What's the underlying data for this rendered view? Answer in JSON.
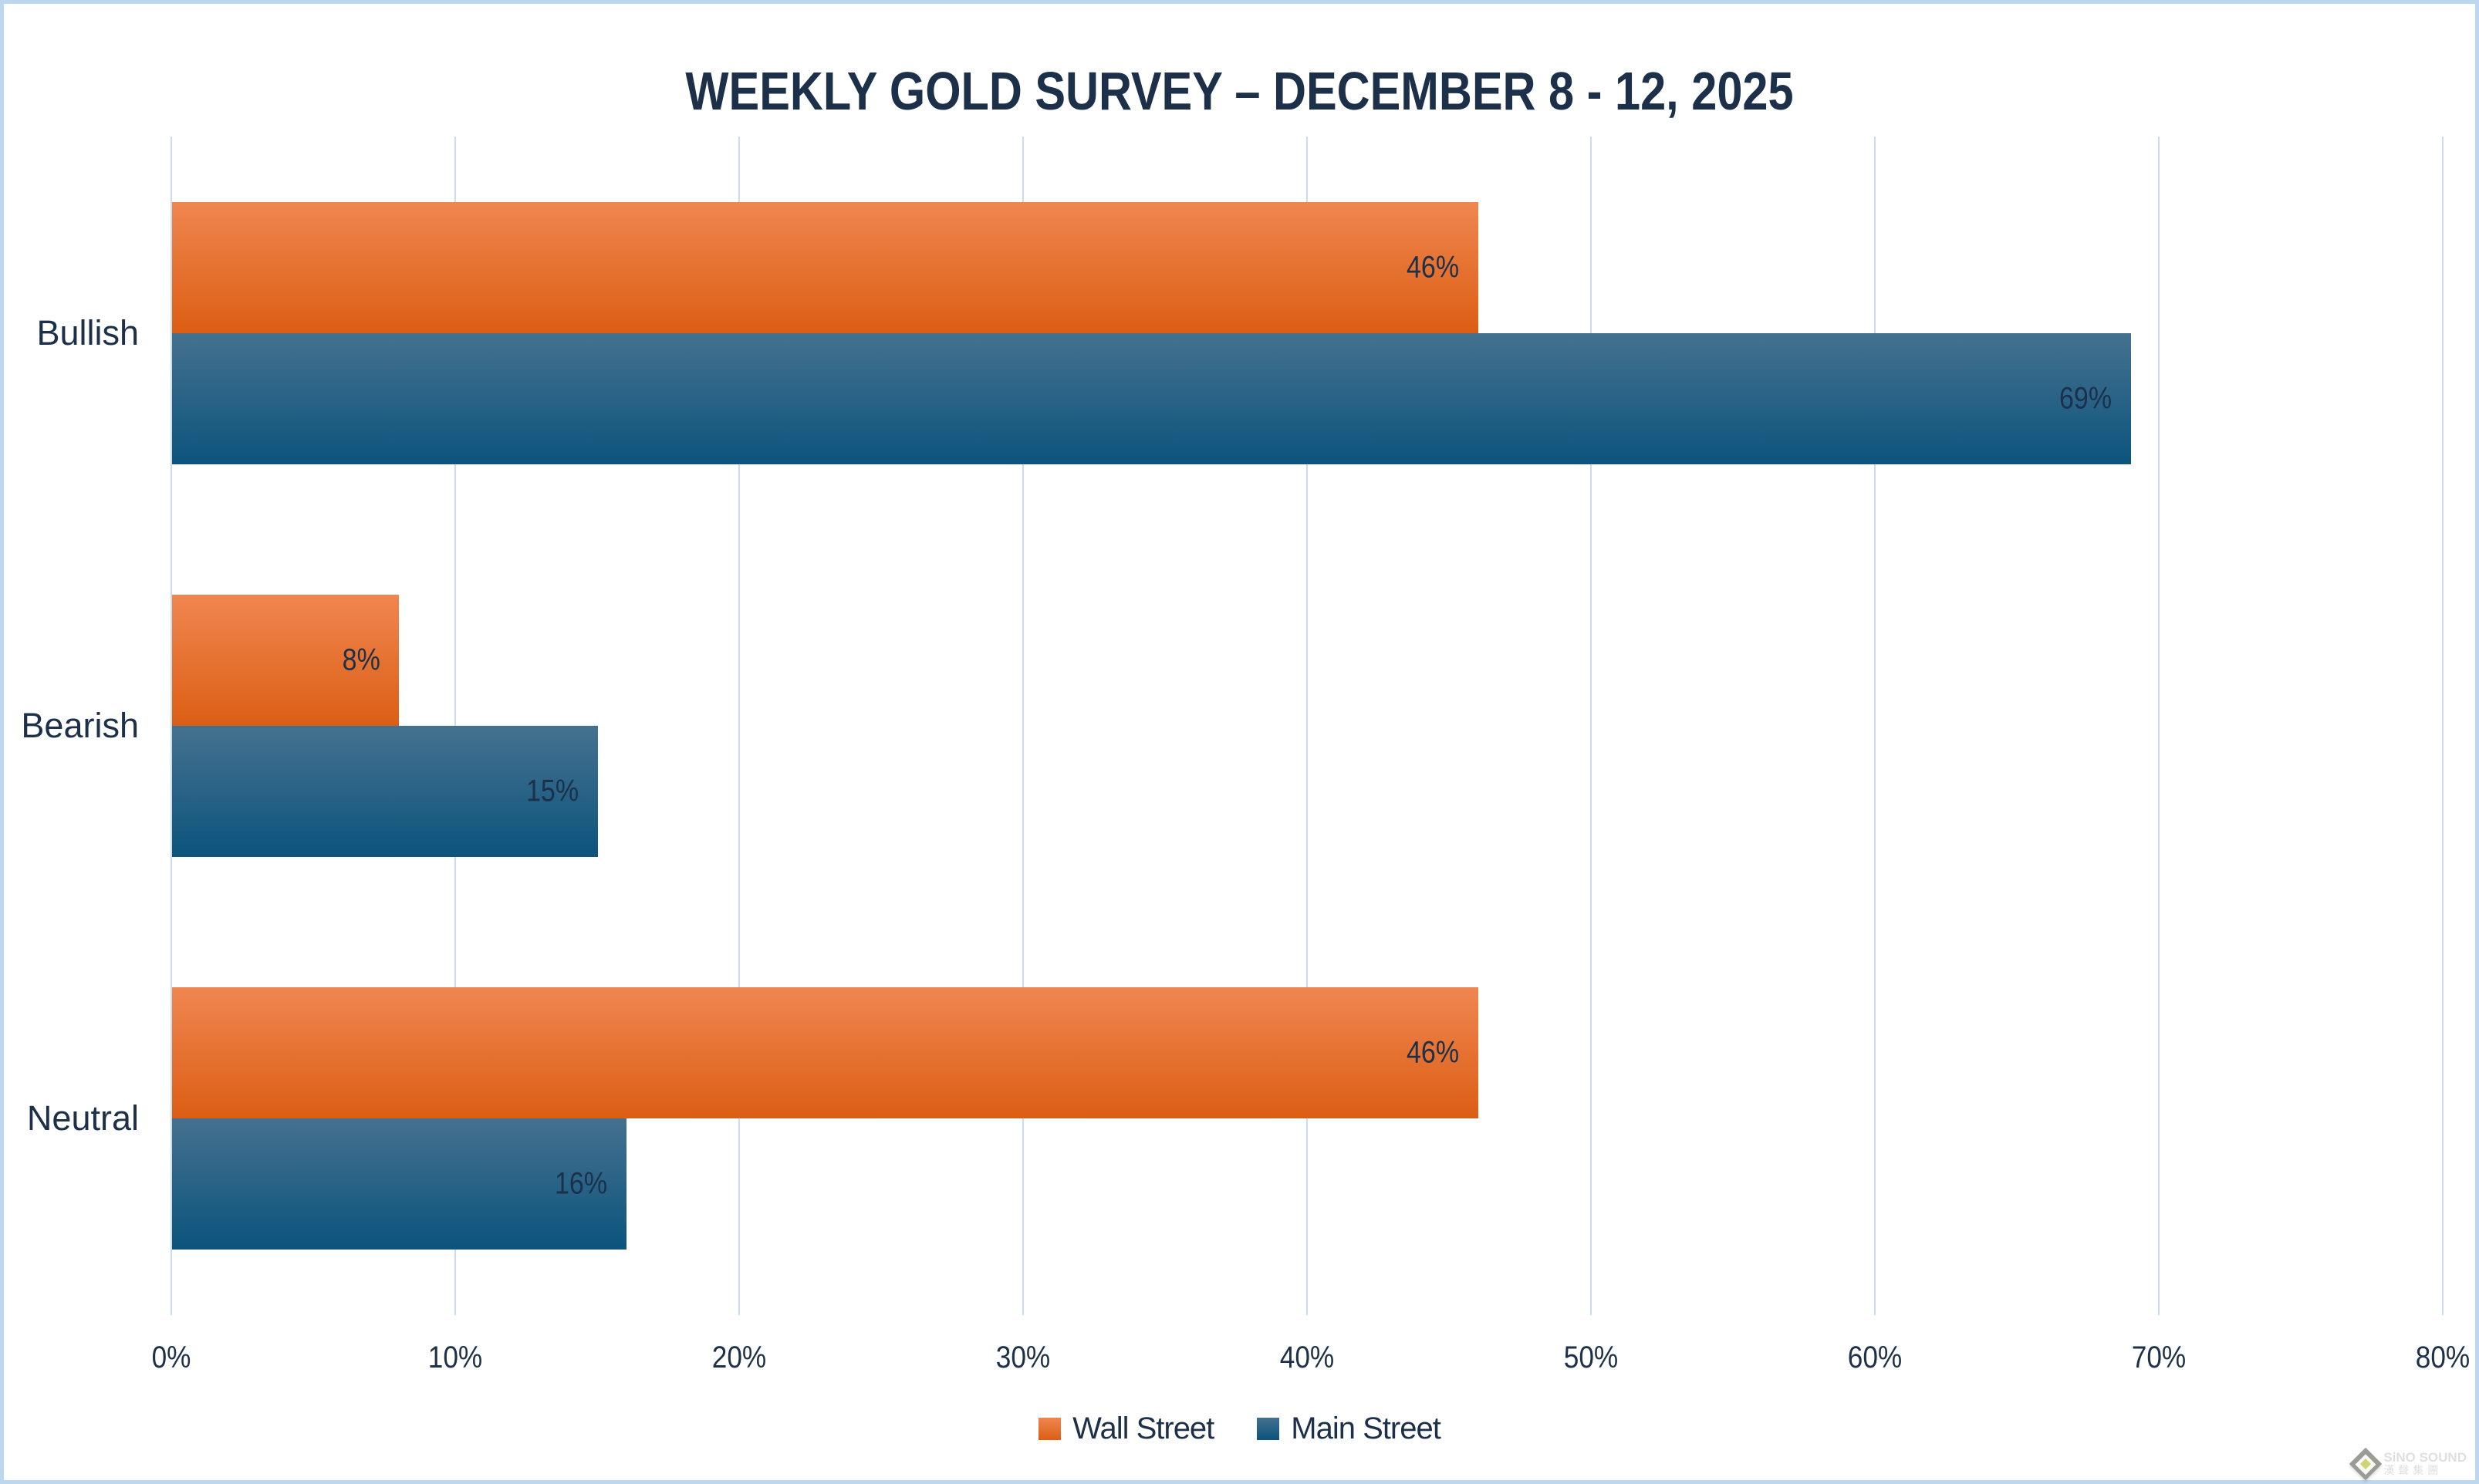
{
  "chart_data": {
    "type": "bar",
    "orientation": "horizontal",
    "title": "WEEKLY GOLD SURVEY – DECEMBER 8 - 12, 2025",
    "categories": [
      "Bullish",
      "Bearish",
      "Neutral"
    ],
    "series": [
      {
        "name": "Wall Street",
        "values": [
          46,
          8,
          46
        ],
        "color_top": "#EF8650",
        "color_bottom": "#DC5E14"
      },
      {
        "name": "Main Street",
        "values": [
          69,
          15,
          16
        ],
        "color_top": "#45718F",
        "color_bottom": "#0C547D"
      }
    ],
    "value_suffix": "%",
    "data_labels": [
      "46%",
      "8%",
      "46%",
      "69%",
      "15%",
      "16%"
    ],
    "xlim": [
      0,
      80
    ],
    "x_tick_step": 10,
    "x_tick_labels": [
      "0%",
      "10%",
      "20%",
      "30%",
      "40%",
      "50%",
      "60%",
      "70%",
      "80%"
    ],
    "grid": true,
    "legend_position": "bottom"
  },
  "colors": {
    "wall_street_top": "#EF8650",
    "wall_street_bottom": "#DC5E14",
    "main_street_top": "#45718F",
    "main_street_bottom": "#0C547D",
    "text": "#1C3049",
    "gridline": "#C9DDF0",
    "border": "#BDD7EE",
    "background": "#FFFFFF"
  },
  "watermark": {
    "line1": "SiNO SOUND",
    "line2": "漢聲集團"
  }
}
